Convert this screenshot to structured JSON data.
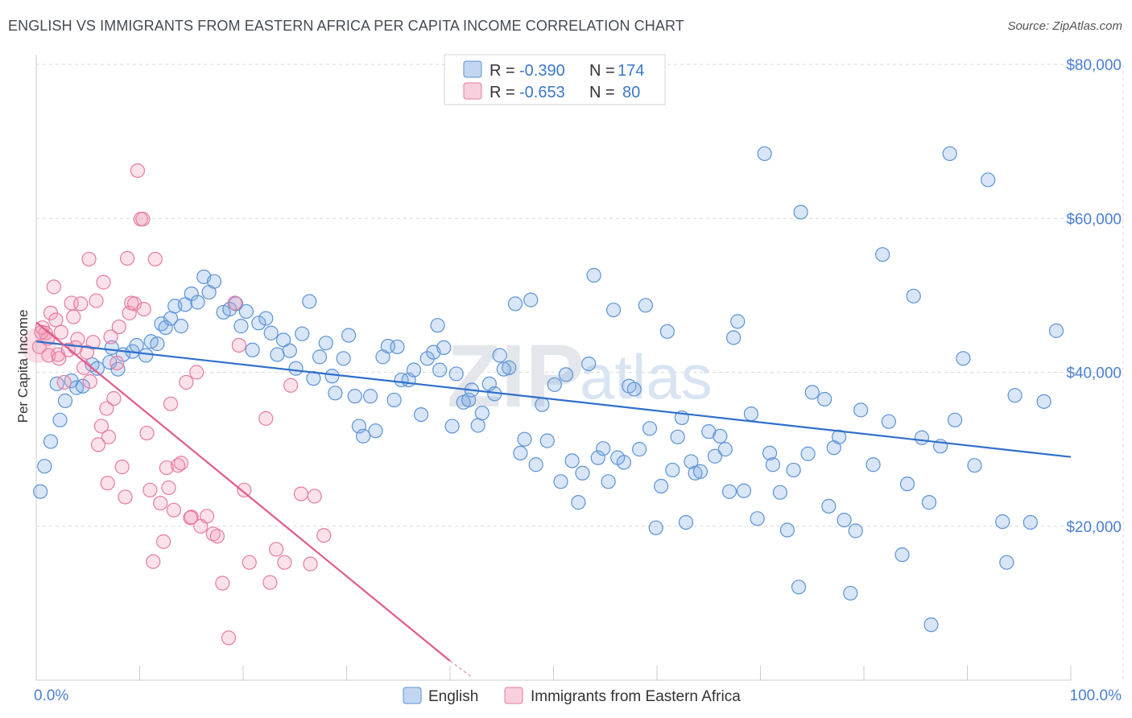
{
  "title": "ENGLISH VS IMMIGRANTS FROM EASTERN AFRICA PER CAPITA INCOME CORRELATION CHART",
  "source": "Source: ZipAtlas.com",
  "watermark": {
    "zip": "ZIP",
    "atlas": "atlas"
  },
  "colors": {
    "english": "#5b93d6",
    "english_fill": "rgba(120,165,225,0.28)",
    "english_line": "#2f6fcb",
    "immigrants": "#e77aa0",
    "immigrants_fill": "rgba(240,150,180,0.28)",
    "immigrants_line": "#e05a8a",
    "grid": "#d5d9e0",
    "tick_label": "#4a7fd0"
  },
  "legend_stats": [
    {
      "r_label": "R =",
      "r": "-0.390",
      "n_label": "N =",
      "n": "174"
    },
    {
      "r_label": "R =",
      "r": "-0.653",
      "n_label": "N =",
      "n": "80"
    }
  ],
  "chart_data": {
    "type": "scatter",
    "title": "ENGLISH VS IMMIGRANTS FROM EASTERN AFRICA PER CAPITA INCOME CORRELATION CHART",
    "xlabel": "",
    "ylabel": "Per Capita Income",
    "xlim": [
      0,
      100
    ],
    "ylim": [
      0,
      80000
    ],
    "x_tick_labels": [
      "0.0%",
      "100.0%"
    ],
    "y_ticks": [
      20000,
      40000,
      60000,
      80000
    ],
    "y_tick_labels": [
      "$20,000",
      "$40,000",
      "$60,000",
      "$80,000"
    ],
    "grid": true,
    "legend_position": "bottom",
    "series": [
      {
        "name": "English",
        "trend": {
          "x": [
            0,
            100
          ],
          "y": [
            44000,
            29000
          ]
        },
        "points": [
          [
            0.4,
            24500
          ],
          [
            0.8,
            27800
          ],
          [
            1.4,
            31000
          ],
          [
            2.0,
            38500
          ],
          [
            2.3,
            33800
          ],
          [
            2.8,
            36300
          ],
          [
            3.4,
            38900
          ],
          [
            3.9,
            38000
          ],
          [
            4.5,
            38200
          ],
          [
            5.4,
            41000
          ],
          [
            5.9,
            40500
          ],
          [
            7.1,
            41300
          ],
          [
            7.3,
            43200
          ],
          [
            7.9,
            40400
          ],
          [
            8.4,
            42300
          ],
          [
            9.3,
            42700
          ],
          [
            9.7,
            43500
          ],
          [
            10.6,
            42200
          ],
          [
            11.1,
            44000
          ],
          [
            11.7,
            43700
          ],
          [
            12.1,
            46300
          ],
          [
            12.5,
            45800
          ],
          [
            13.0,
            47000
          ],
          [
            13.4,
            48600
          ],
          [
            14.0,
            46000
          ],
          [
            14.4,
            48800
          ],
          [
            15.0,
            50200
          ],
          [
            15.6,
            49100
          ],
          [
            16.2,
            52400
          ],
          [
            16.7,
            50400
          ],
          [
            17.2,
            51800
          ],
          [
            18.1,
            47800
          ],
          [
            18.7,
            48200
          ],
          [
            19.3,
            48900
          ],
          [
            19.8,
            46000
          ],
          [
            20.3,
            47900
          ],
          [
            20.9,
            42900
          ],
          [
            21.5,
            46400
          ],
          [
            22.2,
            47000
          ],
          [
            22.7,
            45100
          ],
          [
            23.3,
            42300
          ],
          [
            23.9,
            44200
          ],
          [
            24.5,
            42800
          ],
          [
            25.1,
            40500
          ],
          [
            25.7,
            45000
          ],
          [
            26.4,
            49200
          ],
          [
            26.8,
            39200
          ],
          [
            27.4,
            42000
          ],
          [
            28.0,
            43800
          ],
          [
            28.6,
            39500
          ],
          [
            28.9,
            37300
          ],
          [
            29.7,
            41800
          ],
          [
            30.2,
            44800
          ],
          [
            30.8,
            36900
          ],
          [
            31.2,
            33000
          ],
          [
            31.6,
            31700
          ],
          [
            32.3,
            36900
          ],
          [
            32.8,
            32400
          ],
          [
            33.5,
            42000
          ],
          [
            34.0,
            43400
          ],
          [
            34.6,
            36400
          ],
          [
            34.9,
            43300
          ],
          [
            35.3,
            39000
          ],
          [
            36.0,
            39000
          ],
          [
            36.5,
            40300
          ],
          [
            37.2,
            34500
          ],
          [
            37.8,
            41800
          ],
          [
            38.4,
            42600
          ],
          [
            38.8,
            46100
          ],
          [
            39.4,
            43200
          ],
          [
            39.0,
            40300
          ],
          [
            40.2,
            33000
          ],
          [
            40.6,
            39800
          ],
          [
            41.3,
            36100
          ],
          [
            41.8,
            36400
          ],
          [
            42.1,
            37700
          ],
          [
            42.7,
            33100
          ],
          [
            43.1,
            34700
          ],
          [
            43.8,
            38500
          ],
          [
            44.3,
            37200
          ],
          [
            44.8,
            42200
          ],
          [
            45.2,
            40400
          ],
          [
            45.7,
            40600
          ],
          [
            46.3,
            48900
          ],
          [
            46.8,
            29500
          ],
          [
            47.2,
            31300
          ],
          [
            47.8,
            49400
          ],
          [
            48.3,
            28000
          ],
          [
            48.9,
            35800
          ],
          [
            49.4,
            31100
          ],
          [
            50.1,
            38400
          ],
          [
            50.7,
            25800
          ],
          [
            51.2,
            39700
          ],
          [
            51.8,
            28500
          ],
          [
            52.4,
            23100
          ],
          [
            52.8,
            26900
          ],
          [
            53.4,
            41100
          ],
          [
            53.9,
            52600
          ],
          [
            54.3,
            28900
          ],
          [
            54.8,
            30100
          ],
          [
            55.3,
            25800
          ],
          [
            55.8,
            48100
          ],
          [
            56.2,
            28900
          ],
          [
            56.8,
            28300
          ],
          [
            57.3,
            38200
          ],
          [
            57.8,
            37800
          ],
          [
            58.3,
            30000
          ],
          [
            58.9,
            48700
          ],
          [
            59.3,
            32700
          ],
          [
            59.9,
            19800
          ],
          [
            60.4,
            25200
          ],
          [
            61.0,
            45300
          ],
          [
            61.5,
            27300
          ],
          [
            62.0,
            31600
          ],
          [
            62.4,
            34100
          ],
          [
            62.8,
            20500
          ],
          [
            63.3,
            28400
          ],
          [
            63.7,
            26900
          ],
          [
            64.2,
            27100
          ],
          [
            65.0,
            32300
          ],
          [
            65.6,
            29100
          ],
          [
            66.1,
            31700
          ],
          [
            66.6,
            30000
          ],
          [
            67.0,
            24500
          ],
          [
            67.4,
            44500
          ],
          [
            67.8,
            46600
          ],
          [
            68.4,
            24600
          ],
          [
            69.1,
            34600
          ],
          [
            69.7,
            21000
          ],
          [
            70.4,
            68400
          ],
          [
            70.9,
            29500
          ],
          [
            71.2,
            28000
          ],
          [
            71.9,
            24400
          ],
          [
            72.6,
            19500
          ],
          [
            73.2,
            27300
          ],
          [
            73.7,
            12100
          ],
          [
            73.9,
            60800
          ],
          [
            74.6,
            29400
          ],
          [
            75.0,
            37400
          ],
          [
            76.2,
            36500
          ],
          [
            76.6,
            22600
          ],
          [
            77.1,
            30200
          ],
          [
            77.6,
            31600
          ],
          [
            78.1,
            20800
          ],
          [
            78.7,
            11300
          ],
          [
            79.2,
            19400
          ],
          [
            79.7,
            35100
          ],
          [
            80.9,
            28000
          ],
          [
            81.8,
            55300
          ],
          [
            82.4,
            33600
          ],
          [
            83.7,
            16300
          ],
          [
            84.2,
            25500
          ],
          [
            84.8,
            49900
          ],
          [
            85.6,
            31500
          ],
          [
            86.3,
            23100
          ],
          [
            87.4,
            30400
          ],
          [
            88.3,
            68400
          ],
          [
            88.8,
            33800
          ],
          [
            89.6,
            41800
          ],
          [
            90.7,
            27900
          ],
          [
            92.0,
            65000
          ],
          [
            93.4,
            20600
          ],
          [
            93.8,
            15300
          ],
          [
            94.6,
            37000
          ],
          [
            96.1,
            20500
          ],
          [
            97.4,
            36200
          ],
          [
            98.6,
            45400
          ],
          [
            86.5,
            7200
          ]
        ]
      },
      {
        "name": "Immigrants from Eastern Africa",
        "trend": {
          "x": [
            0,
            40
          ],
          "y": [
            46500,
            2500
          ]
        },
        "dash_extension": {
          "x": [
            40,
            42
          ],
          "y": [
            2500,
            500
          ]
        },
        "points": [
          [
            0.3,
            43300
          ],
          [
            0.6,
            45800
          ],
          [
            0.9,
            45100
          ],
          [
            1.1,
            44400
          ],
          [
            1.4,
            47700
          ],
          [
            1.7,
            51100
          ],
          [
            1.9,
            46800
          ],
          [
            2.1,
            42300
          ],
          [
            2.4,
            45200
          ],
          [
            2.7,
            38700
          ],
          [
            3.1,
            42900
          ],
          [
            3.4,
            49000
          ],
          [
            3.8,
            43200
          ],
          [
            4.0,
            44300
          ],
          [
            4.3,
            48900
          ],
          [
            4.6,
            40600
          ],
          [
            4.9,
            42600
          ],
          [
            5.2,
            38800
          ],
          [
            5.5,
            43900
          ],
          [
            5.8,
            49300
          ],
          [
            6.0,
            30600
          ],
          [
            6.3,
            33000
          ],
          [
            6.5,
            51700
          ],
          [
            6.8,
            35300
          ],
          [
            7.0,
            31600
          ],
          [
            7.2,
            44600
          ],
          [
            7.5,
            36600
          ],
          [
            7.8,
            41200
          ],
          [
            8.0,
            45900
          ],
          [
            8.3,
            27700
          ],
          [
            8.6,
            23800
          ],
          [
            9.0,
            47700
          ],
          [
            9.2,
            49000
          ],
          [
            9.5,
            48900
          ],
          [
            9.8,
            66200
          ],
          [
            10.1,
            59900
          ],
          [
            10.4,
            48200
          ],
          [
            10.7,
            32100
          ],
          [
            11.0,
            24700
          ],
          [
            11.3,
            15400
          ],
          [
            11.5,
            54700
          ],
          [
            12.0,
            23000
          ],
          [
            12.3,
            18000
          ],
          [
            12.6,
            27600
          ],
          [
            13.0,
            35900
          ],
          [
            13.3,
            22100
          ],
          [
            13.7,
            27900
          ],
          [
            14.0,
            28200
          ],
          [
            14.5,
            38700
          ],
          [
            15.0,
            21200
          ],
          [
            15.5,
            40000
          ],
          [
            15.9,
            20000
          ],
          [
            16.5,
            21300
          ],
          [
            17.1,
            19000
          ],
          [
            17.5,
            18700
          ],
          [
            18.0,
            12600
          ],
          [
            18.6,
            5500
          ],
          [
            19.2,
            49000
          ],
          [
            19.6,
            43500
          ],
          [
            20.1,
            24700
          ],
          [
            20.6,
            15300
          ],
          [
            22.2,
            34000
          ],
          [
            22.6,
            12700
          ],
          [
            23.2,
            17000
          ],
          [
            24.0,
            15300
          ],
          [
            24.6,
            38300
          ],
          [
            25.6,
            24200
          ],
          [
            26.5,
            15100
          ],
          [
            26.9,
            23900
          ],
          [
            27.8,
            18800
          ],
          [
            0.5,
            45200
          ],
          [
            1.2,
            42200
          ],
          [
            2.2,
            41800
          ],
          [
            3.6,
            47200
          ],
          [
            5.1,
            54700
          ],
          [
            6.9,
            25600
          ],
          [
            8.8,
            54800
          ],
          [
            10.3,
            59900
          ],
          [
            12.8,
            25000
          ],
          [
            14.9,
            21100
          ]
        ]
      }
    ]
  },
  "bottom_legend": [
    "English",
    "Immigrants from Eastern Africa"
  ]
}
